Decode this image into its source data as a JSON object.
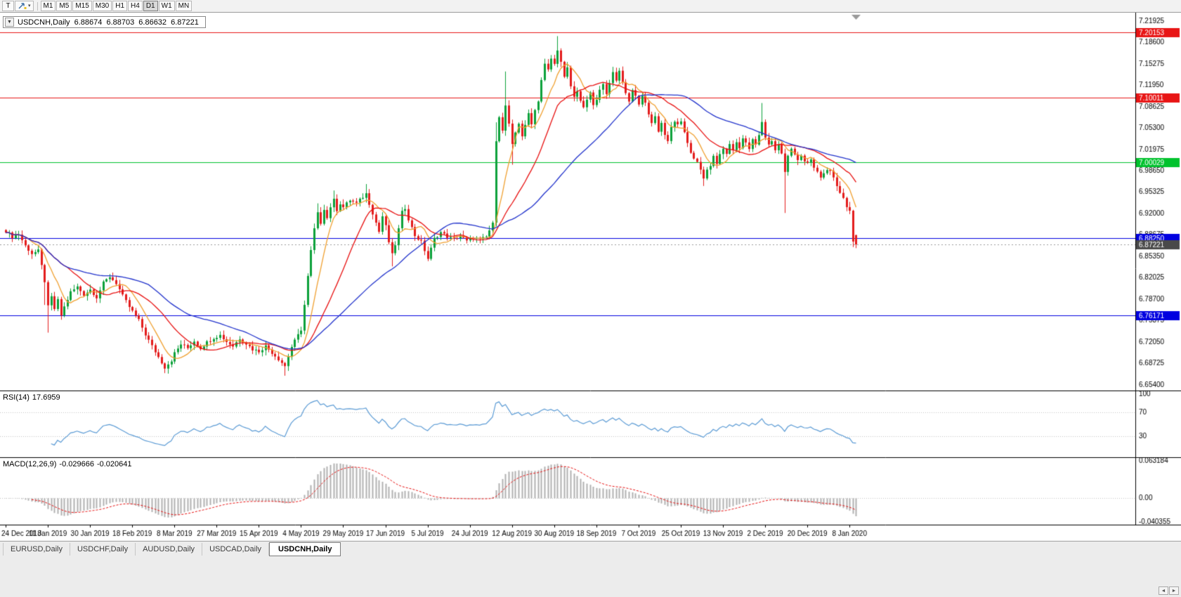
{
  "colors": {
    "up": "#0ca13a",
    "down": "#e31b1b",
    "ma_fast": "#f0a030",
    "ma_mid": "#e81010",
    "ma_slow": "#2233cc",
    "macd_hist": "#b0b0b0",
    "macd_signal": "#e81010",
    "panel_border": "#000000",
    "dotted_grid": "#c4c4c4"
  },
  "toolbar": {
    "text_tool": "T",
    "dropdown_caret": "▾",
    "timeframes": [
      "M1",
      "M5",
      "M15",
      "M30",
      "H1",
      "H4",
      "D1",
      "W1",
      "MN"
    ],
    "active_timeframe": "D1"
  },
  "title_bar": {
    "collapse_icon": "▼",
    "symbol": "USDCNH,Daily",
    "open": "6.88674",
    "high": "6.88703",
    "low": "6.86632",
    "close": "6.87221"
  },
  "tabs": {
    "items": [
      "EURUSD,Daily",
      "USDCHF,Daily",
      "AUDUSD,Daily",
      "USDCAD,Daily",
      "USDCNH,Daily"
    ],
    "active": "USDCNH,Daily"
  },
  "footer": {
    "left_arrow": "◄",
    "right_arrow": "►"
  },
  "chart_data": {
    "type": "candlestick",
    "symbol": "USDCNH",
    "timeframe": "Daily",
    "ohlc_current": {
      "open": "6.88674",
      "high": "6.88703",
      "low": "6.86632",
      "close": "6.87221"
    },
    "bar_count": 263,
    "bars_per_label": 13,
    "price_axis": {
      "top": 7.2325,
      "bottom": 6.645,
      "labels": [
        "7.21925",
        "7.18600",
        "7.15275",
        "7.11950",
        "7.08625",
        "7.05300",
        "7.01975",
        "6.98650",
        "6.95325",
        "6.92000",
        "6.88675",
        "6.85350",
        "6.82025",
        "6.78700",
        "6.75375",
        "6.72050",
        "6.68725",
        "6.65400"
      ]
    },
    "hlines": [
      {
        "value": 7.20153,
        "label": "7.20153",
        "color": "#e81515"
      },
      {
        "value": 7.10011,
        "label": "7.10011",
        "color": "#e81515"
      },
      {
        "value": 7.00029,
        "label": "7.00029",
        "color": "#00c22d"
      },
      {
        "value": 6.8825,
        "label": "6.88250",
        "color": "#0000e0"
      },
      {
        "value": 6.76171,
        "label": "6.76171",
        "color": "#0000e0"
      }
    ],
    "current_price": {
      "value": 6.87221,
      "label": "6.87221",
      "bg": "#4a4a4a"
    },
    "moving_averages": [
      {
        "period": 8,
        "color": "#f0a030"
      },
      {
        "period": 20,
        "color": "#e81010"
      },
      {
        "period": 45,
        "color": "#2233cc"
      }
    ],
    "rsi": {
      "period": 14,
      "label": "RSI(14)",
      "value": "17.6959",
      "levels": [
        100,
        70,
        30
      ],
      "color": "#5b9bd5"
    },
    "macd": {
      "label": "MACD(12,26,9)",
      "value_main": "-0.029666",
      "value_signal": "-0.020641",
      "axis_labels": [
        "0.063184",
        "0.00",
        "-0.040355"
      ],
      "max": 0.063184,
      "min": -0.040355
    },
    "date_labels": [
      "24 Dec 2018",
      "11 Jan 2019",
      "30 Jan 2019",
      "18 Feb 2019",
      "8 Mar 2019",
      "27 Mar 2019",
      "15 Apr 2019",
      "4 May 2019",
      "29 May 2019",
      "17 Jun 2019",
      "5 Jul 2019",
      "24 Jul 2019",
      "12 Aug 2019",
      "30 Aug 2019",
      "18 Sep 2019",
      "7 Oct 2019",
      "25 Oct 2019",
      "13 Nov 2019",
      "2 Dec 2019",
      "20 Dec 2019",
      "8 Jan 2020"
    ],
    "price_path": [
      [
        0,
        6.893
      ],
      [
        2,
        6.884
      ],
      [
        4,
        6.888
      ],
      [
        6,
        6.87
      ],
      [
        8,
        6.858
      ],
      [
        10,
        6.862
      ],
      [
        12,
        6.815
      ],
      [
        13,
        6.775
      ],
      [
        14,
        6.79
      ],
      [
        15,
        6.772
      ],
      [
        16,
        6.785
      ],
      [
        17,
        6.762
      ],
      [
        18,
        6.775
      ],
      [
        20,
        6.798
      ],
      [
        22,
        6.806
      ],
      [
        24,
        6.794
      ],
      [
        26,
        6.802
      ],
      [
        28,
        6.79
      ],
      [
        30,
        6.812
      ],
      [
        32,
        6.822
      ],
      [
        34,
        6.812
      ],
      [
        36,
        6.792
      ],
      [
        38,
        6.775
      ],
      [
        39,
        6.768
      ],
      [
        41,
        6.754
      ],
      [
        43,
        6.732
      ],
      [
        45,
        6.714
      ],
      [
        47,
        6.697
      ],
      [
        49,
        6.681
      ],
      [
        51,
        6.692
      ],
      [
        52,
        6.703
      ],
      [
        54,
        6.717
      ],
      [
        56,
        6.711
      ],
      [
        58,
        6.722
      ],
      [
        60,
        6.711
      ],
      [
        62,
        6.72
      ],
      [
        64,
        6.727
      ],
      [
        66,
        6.731
      ],
      [
        68,
        6.721
      ],
      [
        70,
        6.714
      ],
      [
        72,
        6.726
      ],
      [
        74,
        6.718
      ],
      [
        76,
        6.709
      ],
      [
        78,
        6.706
      ],
      [
        80,
        6.714
      ],
      [
        82,
        6.704
      ],
      [
        84,
        6.694
      ],
      [
        86,
        6.683
      ],
      [
        88,
        6.713
      ],
      [
        90,
        6.731
      ],
      [
        91,
        6.74
      ],
      [
        92,
        6.778
      ],
      [
        93,
        6.822
      ],
      [
        94,
        6.862
      ],
      [
        95,
        6.896
      ],
      [
        96,
        6.92
      ],
      [
        97,
        6.906
      ],
      [
        98,
        6.928
      ],
      [
        99,
        6.913
      ],
      [
        100,
        6.931
      ],
      [
        101,
        6.941
      ],
      [
        102,
        6.926
      ],
      [
        103,
        6.936
      ],
      [
        104,
        6.93
      ],
      [
        106,
        6.941
      ],
      [
        108,
        6.936
      ],
      [
        110,
        6.946
      ],
      [
        111,
        6.951
      ],
      [
        112,
        6.936
      ],
      [
        113,
        6.921
      ],
      [
        114,
        6.906
      ],
      [
        115,
        6.892
      ],
      [
        116,
        6.916
      ],
      [
        117,
        6.9
      ],
      [
        118,
        6.876
      ],
      [
        119,
        6.856
      ],
      [
        120,
        6.872
      ],
      [
        121,
        6.896
      ],
      [
        122,
        6.922
      ],
      [
        123,
        6.929
      ],
      [
        124,
        6.912
      ],
      [
        125,
        6.898
      ],
      [
        126,
        6.886
      ],
      [
        128,
        6.876
      ],
      [
        130,
        6.85
      ],
      [
        132,
        6.881
      ],
      [
        134,
        6.891
      ],
      [
        136,
        6.884
      ],
      [
        138,
        6.88
      ],
      [
        140,
        6.886
      ],
      [
        142,
        6.877
      ],
      [
        144,
        6.883
      ],
      [
        146,
        6.879
      ],
      [
        148,
        6.884
      ],
      [
        150,
        6.904
      ],
      [
        151,
        7.035
      ],
      [
        152,
        7.072
      ],
      [
        153,
        7.048
      ],
      [
        154,
        7.088
      ],
      [
        155,
        7.058
      ],
      [
        156,
        7.026
      ],
      [
        157,
        7.046
      ],
      [
        158,
        7.061
      ],
      [
        159,
        7.041
      ],
      [
        160,
        7.056
      ],
      [
        161,
        7.076
      ],
      [
        162,
        7.061
      ],
      [
        163,
        7.081
      ],
      [
        164,
        7.096
      ],
      [
        165,
        7.128
      ],
      [
        166,
        7.152
      ],
      [
        167,
        7.143
      ],
      [
        168,
        7.161
      ],
      [
        169,
        7.152
      ],
      [
        170,
        7.176
      ],
      [
        171,
        7.155
      ],
      [
        172,
        7.131
      ],
      [
        173,
        7.146
      ],
      [
        174,
        7.118
      ],
      [
        175,
        7.101
      ],
      [
        176,
        7.112
      ],
      [
        177,
        7.096
      ],
      [
        178,
        7.083
      ],
      [
        179,
        7.098
      ],
      [
        180,
        7.106
      ],
      [
        181,
        7.089
      ],
      [
        182,
        7.096
      ],
      [
        183,
        7.111
      ],
      [
        184,
        7.124
      ],
      [
        185,
        7.108
      ],
      [
        186,
        7.121
      ],
      [
        187,
        7.139
      ],
      [
        188,
        7.127
      ],
      [
        189,
        7.144
      ],
      [
        190,
        7.124
      ],
      [
        191,
        7.109
      ],
      [
        192,
        7.094
      ],
      [
        193,
        7.114
      ],
      [
        194,
        7.101
      ],
      [
        195,
        7.089
      ],
      [
        196,
        7.104
      ],
      [
        197,
        7.091
      ],
      [
        198,
        7.076
      ],
      [
        199,
        7.061
      ],
      [
        200,
        7.071
      ],
      [
        201,
        7.049
      ],
      [
        202,
        7.061
      ],
      [
        203,
        7.043
      ],
      [
        204,
        7.031
      ],
      [
        205,
        7.054
      ],
      [
        206,
        7.064
      ],
      [
        207,
        7.057
      ],
      [
        208,
        7.061
      ],
      [
        209,
        7.047
      ],
      [
        210,
        7.031
      ],
      [
        211,
        7.016
      ],
      [
        212,
        7.004
      ],
      [
        213,
        6.999
      ],
      [
        214,
        6.988
      ],
      [
        215,
        6.976
      ],
      [
        216,
        6.986
      ],
      [
        217,
        6.996
      ],
      [
        218,
        7.008
      ],
      [
        219,
        6.998
      ],
      [
        220,
        7.012
      ],
      [
        221,
        7.021
      ],
      [
        222,
        7.014
      ],
      [
        223,
        7.027
      ],
      [
        224,
        7.019
      ],
      [
        225,
        7.031
      ],
      [
        226,
        7.024
      ],
      [
        227,
        7.037
      ],
      [
        228,
        7.029
      ],
      [
        229,
        7.021
      ],
      [
        230,
        7.034
      ],
      [
        231,
        7.027
      ],
      [
        232,
        7.041
      ],
      [
        233,
        7.063
      ],
      [
        234,
        7.039
      ],
      [
        235,
        7.027
      ],
      [
        236,
        7.034
      ],
      [
        237,
        7.019
      ],
      [
        238,
        7.027
      ],
      [
        239,
        7.014
      ],
      [
        240,
        6.984
      ],
      [
        241,
        7.009
      ],
      [
        242,
        7.021
      ],
      [
        243,
        7.014
      ],
      [
        244,
        7.004
      ],
      [
        245,
        7.011
      ],
      [
        246,
        7.0
      ],
      [
        247,
        6.997
      ],
      [
        248,
        7.004
      ],
      [
        249,
        6.991
      ],
      [
        250,
        6.984
      ],
      [
        251,
        6.977
      ],
      [
        252,
        6.982
      ],
      [
        253,
        6.99
      ],
      [
        254,
        6.984
      ],
      [
        255,
        6.974
      ],
      [
        256,
        6.961
      ],
      [
        257,
        6.953
      ],
      [
        258,
        6.946
      ],
      [
        259,
        6.931
      ],
      [
        260,
        6.924
      ],
      [
        261,
        6.879
      ],
      [
        262,
        6.8722
      ]
    ],
    "wick_overrides": {
      "12": {
        "low": 6.778
      },
      "13": {
        "low": 6.735
      },
      "49": {
        "low": 6.672
      },
      "86": {
        "low": 6.668
      },
      "96": {
        "high": 6.936
      },
      "101": {
        "high": 6.956
      },
      "111": {
        "high": 6.966
      },
      "119": {
        "low": 6.838
      },
      "151": {
        "high": 7.062
      },
      "154": {
        "high": 7.141
      },
      "156": {
        "low": 6.996
      },
      "170": {
        "high": 7.196
      },
      "215": {
        "low": 6.963
      },
      "233": {
        "high": 7.092
      },
      "240": {
        "low": 6.921
      },
      "261": {
        "low": 6.868
      }
    },
    "last_candle": {
      "open": 6.88674,
      "high": 6.88703,
      "low": 6.86632,
      "close": 6.87221
    }
  }
}
